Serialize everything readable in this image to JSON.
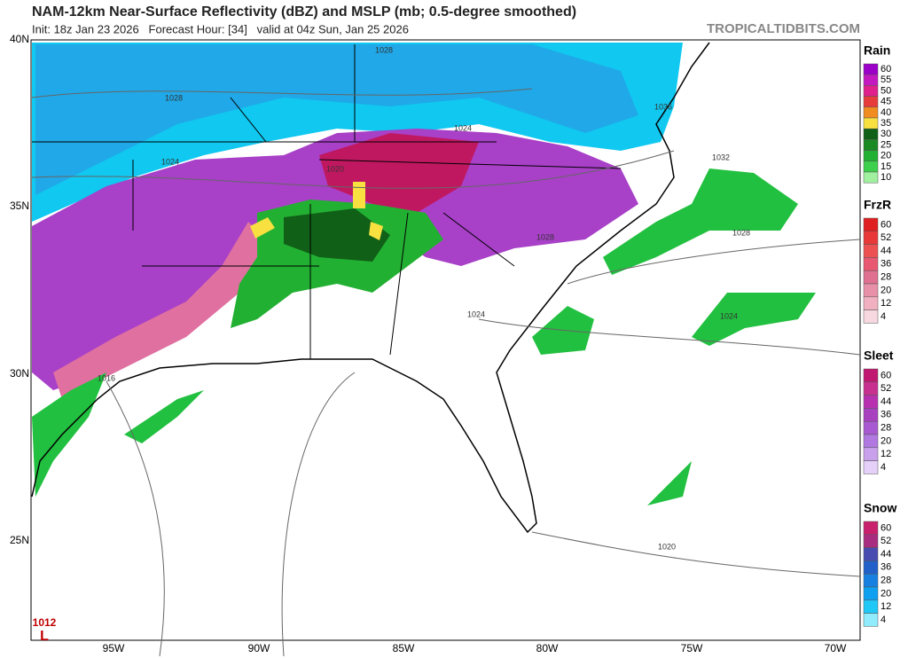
{
  "header": {
    "title": "NAM-12km Near-Surface Reflectivity (dBZ) and MSLP (mb; 0.5-degree smoothed)",
    "subtitle": "Init: 18z Jan 23 2026   Forecast Hour: [34]   valid at 04z Sun, Jan 25 2026",
    "watermark": "TROPICALTIDBITS.COM"
  },
  "map": {
    "lat_labels": [
      "40N",
      "35N",
      "30N",
      "25N"
    ],
    "lon_labels": [
      "95W",
      "90W",
      "85W",
      "80W",
      "75W",
      "70W"
    ],
    "isobar_labels": [
      "1028",
      "1028",
      "1024",
      "1020",
      "1024",
      "1036",
      "1032",
      "1028",
      "1028",
      "1024",
      "1024",
      "1016",
      "1020",
      "1012"
    ],
    "low_label": "L"
  },
  "legends": [
    {
      "title": "Rain",
      "labels": [
        60,
        55,
        50,
        45,
        40,
        35,
        30,
        25,
        20,
        15,
        10
      ],
      "colors": [
        "#9c00c8",
        "#c418c0",
        "#e0208c",
        "#e83c3c",
        "#f08c20",
        "#f8e040",
        "#106018",
        "#1a8a22",
        "#22b032",
        "#3cd04c",
        "#a0f0a0"
      ]
    },
    {
      "title": "FrzR",
      "labels": [
        60,
        52,
        44,
        36,
        28,
        20,
        12,
        4
      ],
      "colors": [
        "#e02020",
        "#e83838",
        "#ec5050",
        "#e85870",
        "#e07090",
        "#e890a8",
        "#f0b0c0",
        "#f8d8e0"
      ]
    },
    {
      "title": "Sleet",
      "labels": [
        60,
        52,
        44,
        36,
        28,
        20,
        12,
        4
      ],
      "colors": [
        "#c01870",
        "#c83090",
        "#b830b0",
        "#a840c0",
        "#a858d0",
        "#b078e0",
        "#c8a0ec",
        "#e4d0f8"
      ]
    },
    {
      "title": "Snow",
      "labels": [
        60,
        52,
        44,
        36,
        28,
        20,
        12,
        4
      ],
      "colors": [
        "#c8206c",
        "#a82c80",
        "#484cb0",
        "#2060c8",
        "#1880e0",
        "#10a0f0",
        "#20c8f8",
        "#90ecfc"
      ]
    }
  ]
}
